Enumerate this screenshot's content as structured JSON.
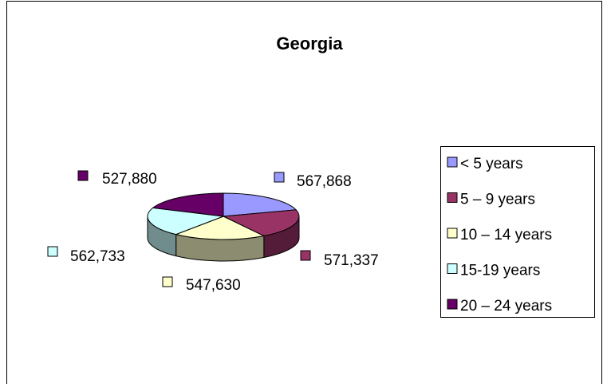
{
  "chart_data": {
    "type": "pie",
    "title": "Georgia",
    "categories": [
      "< 5 years",
      "5 – 9 years",
      "10 – 14 years",
      "15-19 years",
      "20 – 24 years"
    ],
    "values": [
      567868,
      571337,
      547630,
      562733,
      527880
    ],
    "value_labels": [
      "567,868",
      "571,337",
      "547,630",
      "562,733",
      "527,880"
    ],
    "colors": [
      "#9999ff",
      "#993366",
      "#ffffcc",
      "#ccffff",
      "#660066"
    ],
    "legend": "right"
  }
}
